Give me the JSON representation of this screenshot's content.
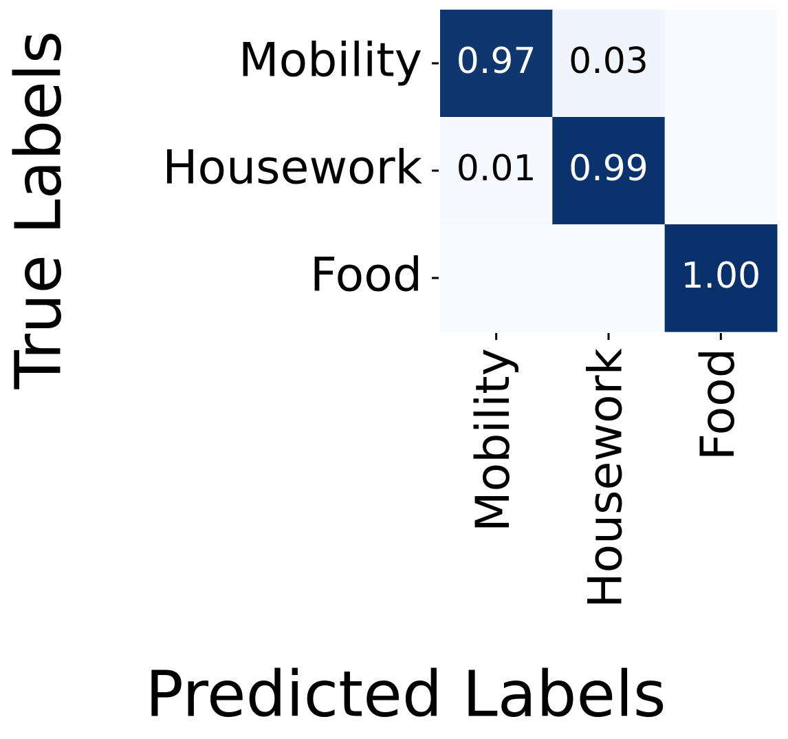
{
  "chart_data": {
    "type": "heatmap",
    "xlabel": "Predicted Labels",
    "ylabel": "True Labels",
    "x_categories": [
      "Mobility",
      "Housework",
      "Food"
    ],
    "y_categories": [
      "Mobility",
      "Housework",
      "Food"
    ],
    "values": [
      [
        0.97,
        0.03,
        0
      ],
      [
        0.01,
        0.99,
        0
      ],
      [
        0,
        0,
        1.0
      ]
    ],
    "value_labels": [
      [
        "0.97",
        "0.03",
        null
      ],
      [
        "0.01",
        "0.99",
        null
      ],
      [
        null,
        null,
        "1.00"
      ]
    ],
    "colormap": [
      "#f7fbff",
      "#08306b"
    ]
  }
}
